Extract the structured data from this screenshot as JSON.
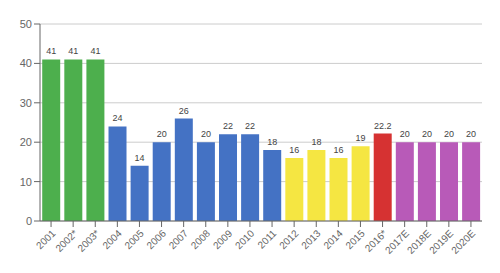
{
  "chart_data": {
    "type": "bar",
    "categories": [
      "2001",
      "2002*",
      "2003*",
      "2004",
      "2005",
      "2006",
      "2007",
      "2008",
      "2009",
      "2010",
      "2011",
      "2012",
      "2013",
      "2014",
      "2015",
      "2016*",
      "2017E",
      "2018E",
      "2019E",
      "2020E"
    ],
    "values": [
      41,
      41,
      41,
      24,
      14,
      20,
      26,
      20,
      22,
      22,
      18,
      16,
      18,
      16,
      19,
      22.2,
      20,
      20,
      20,
      20
    ],
    "colors": [
      "#4daf4d",
      "#4daf4d",
      "#4daf4d",
      "#4472c4",
      "#4472c4",
      "#4472c4",
      "#4472c4",
      "#4472c4",
      "#4472c4",
      "#4472c4",
      "#4472c4",
      "#f5e642",
      "#f5e642",
      "#f5e642",
      "#f5e642",
      "#d63232",
      "#b85ab8",
      "#b85ab8",
      "#b85ab8",
      "#b85ab8"
    ],
    "ylim": [
      0,
      50
    ],
    "yticks": [
      0,
      10,
      20,
      30,
      40,
      50
    ],
    "grid": true,
    "data_labels": true
  }
}
